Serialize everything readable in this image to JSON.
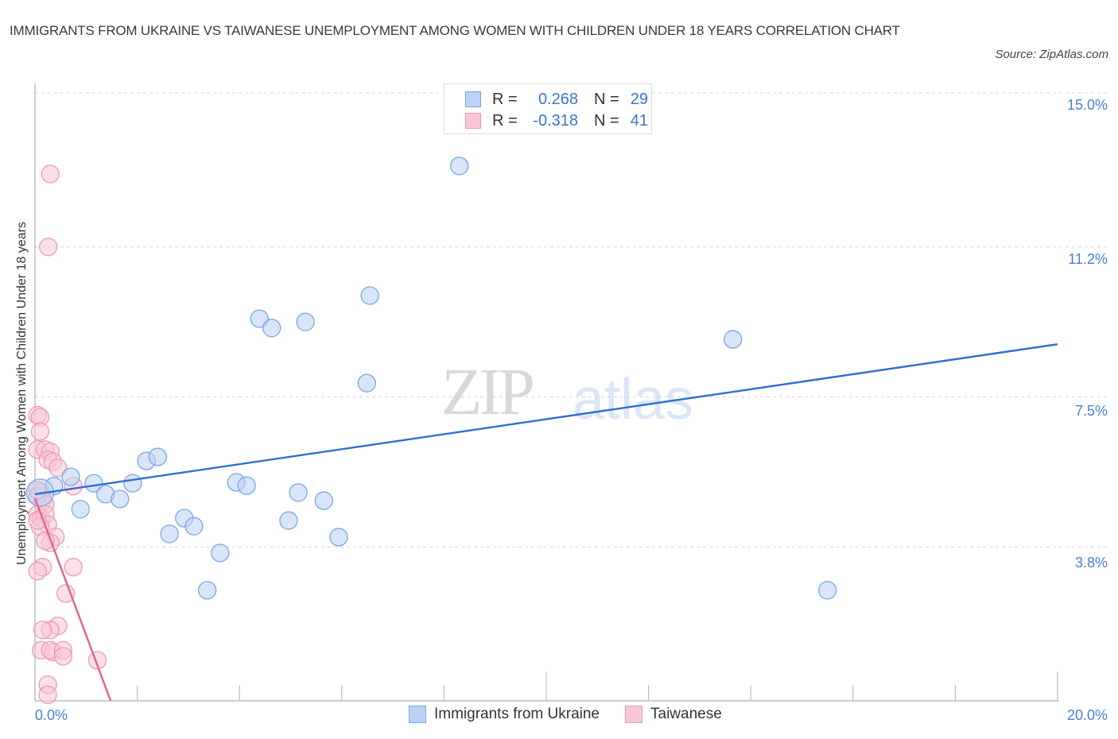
{
  "header": {
    "title": "IMMIGRANTS FROM UKRAINE VS TAIWANESE UNEMPLOYMENT AMONG WOMEN WITH CHILDREN UNDER 18 YEARS CORRELATION CHART",
    "source": "Source: ZipAtlas.com"
  },
  "watermark": {
    "zip": "ZIP",
    "atlas": "atlas"
  },
  "legend": {
    "rows": [
      {
        "r_label": "R =",
        "r_value": "0.268",
        "n_label": "N =",
        "n_value": "29",
        "color": "#b9d2f5",
        "border": "#7aa6e6"
      },
      {
        "r_label": "R =",
        "r_value": "-0.318",
        "n_label": "N =",
        "n_value": "41",
        "color": "#f9c6d5",
        "border": "#ec9ab3"
      }
    ]
  },
  "bottom_legend": [
    {
      "label": "Immigrants from Ukraine",
      "color": "#b9d2f5",
      "border": "#7aa6e6"
    },
    {
      "label": "Taiwanese",
      "color": "#f9c6d5",
      "border": "#ec9ab3"
    }
  ],
  "axes": {
    "ylabel": "Unemployment Among Women with Children Under 18 years",
    "y_ticks": [
      "15.0%",
      "11.2%",
      "7.5%",
      "3.8%"
    ],
    "x_min_label": "0.0%",
    "x_max_label": "20.0%"
  },
  "chart_data": {
    "type": "scatter",
    "title": "IMMIGRANTS FROM UKRAINE VS TAIWANESE UNEMPLOYMENT AMONG WOMEN WITH CHILDREN UNDER 18 YEARS CORRELATION CHART",
    "xlabel": "",
    "ylabel": "Unemployment Among Women with Children Under 18 years",
    "xlim": [
      0,
      20
    ],
    "ylim": [
      0,
      15
    ],
    "x_ticks": [
      0,
      2,
      4,
      6,
      8,
      10,
      12,
      14,
      16,
      18,
      20
    ],
    "x_tick_labels_shown": [
      "0.0%",
      "20.0%"
    ],
    "y_ticks": [
      3.8,
      7.5,
      11.2,
      15.0
    ],
    "y_tick_labels": [
      "3.8%",
      "7.5%",
      "11.2%",
      "15.0%"
    ],
    "grid": {
      "horizontal": true,
      "style": "dashed"
    },
    "legend_position": "top-center and bottom",
    "series": [
      {
        "name": "Immigrants from Ukraine",
        "color": "#b9d2f5",
        "stroke": "#7aa6e6",
        "line_color": "#2c6fd1",
        "R": 0.268,
        "N": 29,
        "trend": {
          "x": [
            0,
            20
          ],
          "y": [
            5.1,
            8.8
          ]
        },
        "points": [
          [
            8.3,
            13.2
          ],
          [
            6.55,
            10.0
          ],
          [
            4.39,
            9.43
          ],
          [
            4.63,
            9.2
          ],
          [
            5.29,
            9.35
          ],
          [
            13.65,
            8.92
          ],
          [
            6.49,
            7.84
          ],
          [
            2.18,
            5.92
          ],
          [
            2.4,
            6.02
          ],
          [
            0.7,
            5.53
          ],
          [
            1.15,
            5.37
          ],
          [
            0.37,
            5.3
          ],
          [
            0.1,
            5.14
          ],
          [
            1.91,
            5.37
          ],
          [
            3.94,
            5.39
          ],
          [
            4.14,
            5.31
          ],
          [
            1.38,
            5.1
          ],
          [
            1.66,
            4.98
          ],
          [
            5.15,
            5.14
          ],
          [
            5.65,
            4.94
          ],
          [
            0.89,
            4.73
          ],
          [
            2.92,
            4.51
          ],
          [
            3.11,
            4.31
          ],
          [
            4.96,
            4.45
          ],
          [
            2.63,
            4.12
          ],
          [
            5.94,
            4.04
          ],
          [
            3.62,
            3.65
          ],
          [
            3.37,
            2.73
          ],
          [
            15.5,
            2.73
          ]
        ]
      },
      {
        "name": "Taiwanese",
        "color": "#f9c6d5",
        "stroke": "#ec9ab3",
        "line_color": "#e2628e",
        "R": -0.318,
        "N": 41,
        "trend": {
          "x": [
            0,
            1.48
          ],
          "y": [
            5.0,
            0.0
          ]
        },
        "points": [
          [
            0.3,
            13.0
          ],
          [
            0.26,
            11.2
          ],
          [
            0.05,
            7.05
          ],
          [
            0.1,
            7.0
          ],
          [
            0.1,
            6.65
          ],
          [
            0.05,
            6.2
          ],
          [
            0.2,
            6.2
          ],
          [
            0.3,
            6.15
          ],
          [
            0.25,
            5.95
          ],
          [
            0.35,
            5.9
          ],
          [
            0.45,
            5.75
          ],
          [
            0.75,
            5.3
          ],
          [
            0.1,
            5.15
          ],
          [
            0.05,
            5.05
          ],
          [
            0.15,
            4.95
          ],
          [
            0.2,
            4.85
          ],
          [
            0.05,
            4.6
          ],
          [
            0.12,
            4.5
          ],
          [
            0.2,
            4.6
          ],
          [
            0.25,
            4.35
          ],
          [
            0.1,
            4.3
          ],
          [
            0.05,
            4.45
          ],
          [
            0.4,
            4.05
          ],
          [
            0.3,
            3.9
          ],
          [
            0.2,
            3.95
          ],
          [
            0.15,
            3.3
          ],
          [
            0.05,
            3.2
          ],
          [
            0.75,
            3.3
          ],
          [
            0.6,
            2.65
          ],
          [
            0.45,
            1.85
          ],
          [
            0.3,
            1.75
          ],
          [
            0.15,
            1.75
          ],
          [
            0.12,
            1.25
          ],
          [
            0.35,
            1.2
          ],
          [
            0.3,
            1.25
          ],
          [
            0.55,
            1.25
          ],
          [
            0.55,
            1.1
          ],
          [
            1.22,
            1.0
          ],
          [
            0.25,
            0.4
          ],
          [
            0.25,
            0.15
          ],
          [
            0.05,
            5.2
          ]
        ]
      }
    ]
  }
}
